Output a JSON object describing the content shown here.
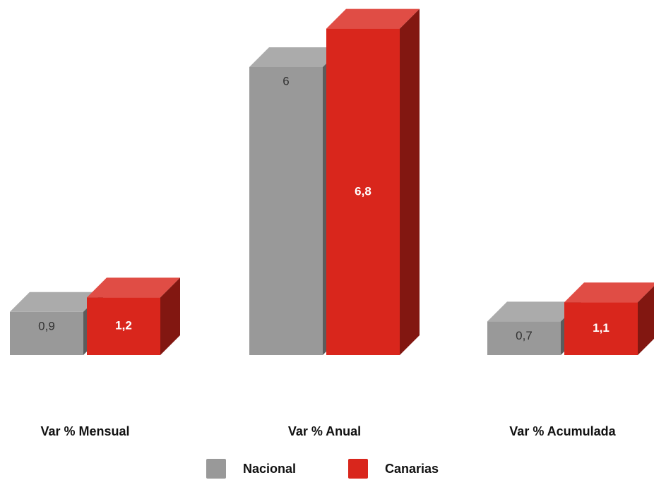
{
  "chart_data": {
    "type": "bar3d",
    "categories": [
      "Var % Mensual",
      "Var % Anual",
      "Var % Acumulada"
    ],
    "series": [
      {
        "name": "Nacional",
        "color": "#999999",
        "values": [
          0.9,
          6,
          0.7
        ],
        "value_labels": [
          "0,9",
          "6",
          "0,7"
        ]
      },
      {
        "name": "Canarias",
        "color": "#d9261c",
        "values": [
          1.2,
          6.8,
          1.1
        ],
        "value_labels": [
          "1,2",
          "6,8",
          "1,1"
        ]
      }
    ]
  }
}
